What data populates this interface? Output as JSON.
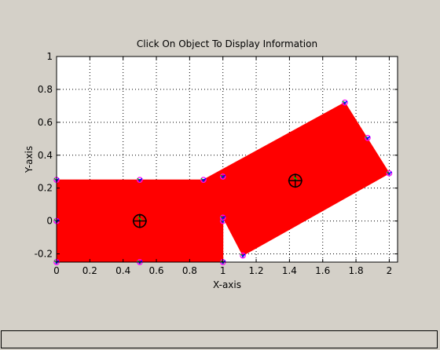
{
  "window": {
    "status_text": ""
  },
  "chart_data": {
    "type": "scatter",
    "title": "Click On Object To Display Information",
    "xlabel": "X-axis",
    "ylabel": "Y-axis",
    "xlim": [
      0,
      2.05
    ],
    "ylim": [
      -0.25,
      1
    ],
    "xticks": [
      0,
      0.2,
      0.4,
      0.6,
      0.8,
      1,
      1.2,
      1.4,
      1.6,
      1.8,
      2
    ],
    "xticklabels": [
      "0",
      "0.2",
      "0.4",
      "0.6",
      "0.8",
      "1",
      "1.2",
      "1.4",
      "1.6",
      "1.8",
      "2"
    ],
    "yticks": [
      -0.2,
      0,
      0.2,
      0.4,
      0.6,
      0.8,
      1
    ],
    "yticklabels": [
      "-0.2",
      "0",
      "0.2",
      "0.4",
      "0.6",
      "0.8",
      "1"
    ],
    "grid": true,
    "grid_style": "dotted",
    "fill_color": "#ff0000",
    "objects": [
      {
        "name": "rect-1",
        "polygon": [
          [
            0,
            -0.25
          ],
          [
            1,
            -0.25
          ],
          [
            1,
            0.25
          ],
          [
            0,
            0.25
          ]
        ],
        "center": [
          0.5,
          0.0
        ],
        "vertex_markers": [
          [
            0,
            -0.25
          ],
          [
            1,
            -0.25
          ],
          [
            1,
            0.25
          ],
          [
            0,
            0.25
          ]
        ],
        "midpoint_markers": [
          [
            0,
            0
          ],
          [
            1,
            0
          ],
          [
            0.5,
            0.25
          ],
          [
            0.5,
            -0.25
          ]
        ]
      },
      {
        "name": "rect-2",
        "polygon": [
          [
            0.883,
            0.25
          ],
          [
            1.733,
            0.72
          ],
          [
            2.0,
            0.29
          ],
          [
            1.12,
            -0.21
          ]
        ],
        "center": [
          1.435,
          0.245
        ],
        "vertex_markers": [
          [
            0.883,
            0.25
          ],
          [
            1.733,
            0.72
          ],
          [
            2.0,
            0.29
          ],
          [
            1.12,
            -0.21
          ]
        ],
        "midpoint_markers": [
          [
            1.0,
            0.02
          ],
          [
            1.87,
            0.505
          ],
          [
            1.0,
            0.27
          ]
        ]
      }
    ]
  }
}
